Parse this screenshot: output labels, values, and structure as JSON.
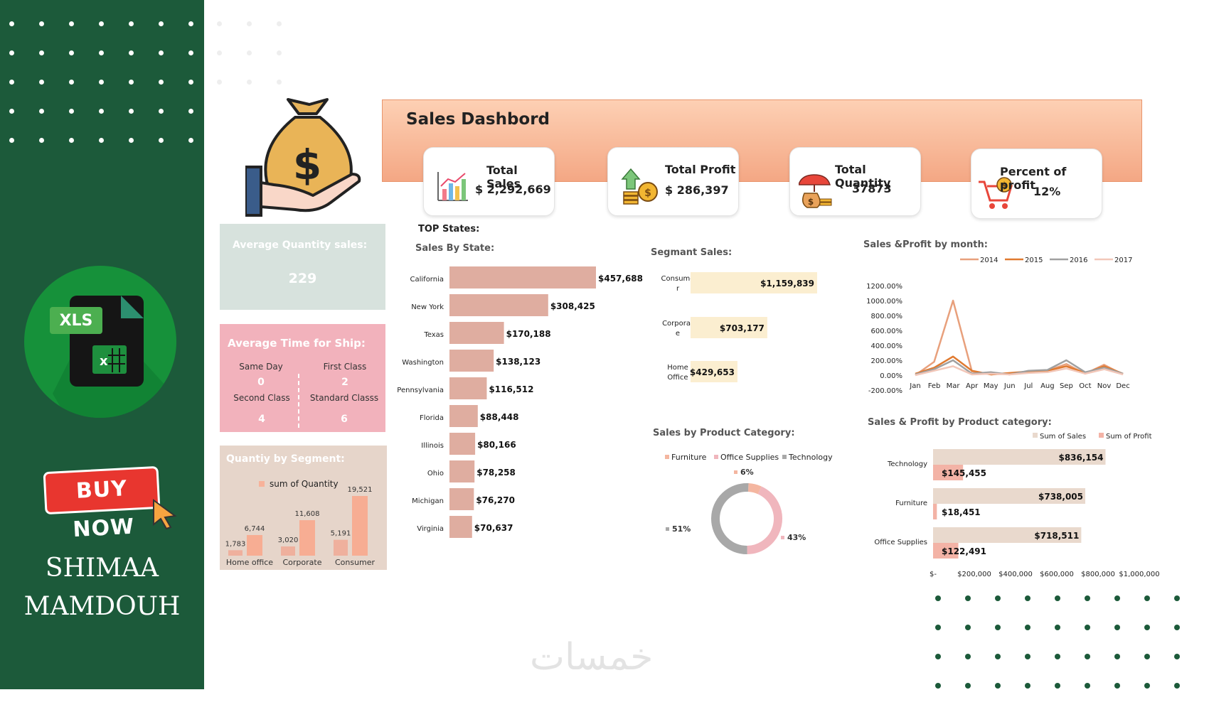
{
  "promo": {
    "badge": "XLS",
    "buy_now": "BUY NOW",
    "author_first": "SHIMAA",
    "author_last": "MAMDOUH",
    "watermark": "خمسات"
  },
  "dashboard": {
    "title": "Sales Dashbord",
    "kpis": [
      {
        "label": "Total Sales",
        "value": "$  2,292,669"
      },
      {
        "label": "Total Profit",
        "value": "$  286,397"
      },
      {
        "label": "Total Quantity",
        "value": "37873"
      },
      {
        "label": "Percent of profit",
        "value": "12%"
      }
    ],
    "avg_quantity": {
      "title": "Average Quantity sales:",
      "value": "229"
    },
    "avg_ship": {
      "title": "Average Time for Ship:",
      "items": [
        {
          "label": "Same Day",
          "value": "0"
        },
        {
          "label": "First Class",
          "value": "2"
        },
        {
          "label": "Second Class",
          "value": "4"
        },
        {
          "label": "Standard Classs",
          "value": "6"
        }
      ]
    },
    "qty_segment": {
      "title": "Quantiy by Segment:",
      "legend": "sum of Quantity",
      "categories": [
        "Home office",
        "Corporate",
        "Consumer"
      ],
      "small": [
        "1,783",
        "3,020",
        "5,191"
      ],
      "large": [
        "6,744",
        "11,608",
        "19,521"
      ]
    },
    "top_states_title": "TOP States:",
    "sales_by_state_title": "Sales By State:",
    "segment_sales_title": "Segmant Sales:",
    "sales_profit_month_title": "Sales &Profit by month:",
    "product_category_title": "Sales by Product Category:",
    "sp_category_title": "Sales & Profit  by Product category:"
  },
  "chart_data": [
    {
      "type": "bar",
      "orientation": "horizontal",
      "title": "Sales By State:",
      "categories": [
        "California",
        "New York",
        "Texas",
        "Washington",
        "Pennsylvania",
        "Florida",
        "Illinois",
        "Ohio",
        "Michigan",
        "Virginia"
      ],
      "values": [
        457688,
        308425,
        170188,
        138123,
        116512,
        88448,
        80166,
        78258,
        76270,
        70637
      ],
      "labels": [
        "$457,688",
        "$308,425",
        "$170,188",
        "$138,123",
        "$116,512",
        "$88,448",
        "$80,166",
        "$78,258",
        "$76,270",
        "$70,637"
      ],
      "color": "#dfada0"
    },
    {
      "type": "bar",
      "orientation": "horizontal",
      "title": "Segmant Sales:",
      "categories": [
        "Consume r",
        "Corporat e",
        "Home Office"
      ],
      "values": [
        1159839,
        703177,
        429653
      ],
      "labels": [
        "$1,159,839",
        "$703,177",
        "$429,653"
      ],
      "color": "#fbeed0"
    },
    {
      "type": "line",
      "title": "Sales &Profit by month:",
      "categories": [
        "Jan",
        "Feb",
        "Mar",
        "Apr",
        "May",
        "Jun",
        "Jul",
        "Aug",
        "Sep",
        "Oct",
        "Nov",
        "Dec"
      ],
      "y_ticks": [
        "1200.00%",
        "1000.00%",
        "800.00%",
        "600.00%",
        "400.00%",
        "200.00%",
        "0.00%",
        "-200.00%"
      ],
      "ylim": [
        -200,
        1200
      ],
      "legend": "top-right",
      "series": [
        {
          "name": "2014",
          "color": "#e8a07c",
          "values": [
            0,
            180,
            1000,
            50,
            10,
            20,
            40,
            60,
            150,
            20,
            140,
            10
          ]
        },
        {
          "name": "2015",
          "color": "#e07a30",
          "values": [
            20,
            100,
            250,
            60,
            10,
            30,
            50,
            60,
            120,
            30,
            120,
            20
          ]
        },
        {
          "name": "2016",
          "color": "#a0a0a0",
          "values": [
            10,
            80,
            200,
            20,
            40,
            10,
            60,
            70,
            200,
            40,
            100,
            20
          ]
        },
        {
          "name": "2017",
          "color": "#f2c7b9",
          "values": [
            0,
            60,
            120,
            10,
            20,
            10,
            30,
            40,
            90,
            20,
            80,
            10
          ]
        }
      ]
    },
    {
      "type": "pie",
      "title": "Sales by Product Category:",
      "legend": "top",
      "categories": [
        "Furniture",
        "Office Supplies",
        "Technology"
      ],
      "values": [
        6,
        43,
        51
      ],
      "labels": [
        "6%",
        "43%",
        "51%"
      ],
      "colors": [
        "#f4b6a0",
        "#f0b6bd",
        "#a8a8a8"
      ]
    },
    {
      "type": "bar",
      "orientation": "horizontal",
      "title": "Sales & Profit  by Product category:",
      "categories": [
        "Technology",
        "Furniture",
        "Office Supplies"
      ],
      "series": [
        {
          "name": "Sum of Sales",
          "color": "#e9d9cd",
          "values": [
            836154,
            738005,
            718511
          ],
          "labels": [
            "$836,154",
            "$738,005",
            "$718,511"
          ]
        },
        {
          "name": "Sum of Profit",
          "color": "#f3b3a6",
          "values": [
            145455,
            18451,
            122491
          ],
          "labels": [
            "$145,455",
            "$18,451",
            "$122,491"
          ]
        }
      ],
      "x_ticks": [
        "$-",
        "$200,000",
        "$400,000",
        "$600,000",
        "$800,000",
        "$1,000,000"
      ],
      "xlim": [
        0,
        1000000
      ],
      "legend": "top-right"
    }
  ]
}
